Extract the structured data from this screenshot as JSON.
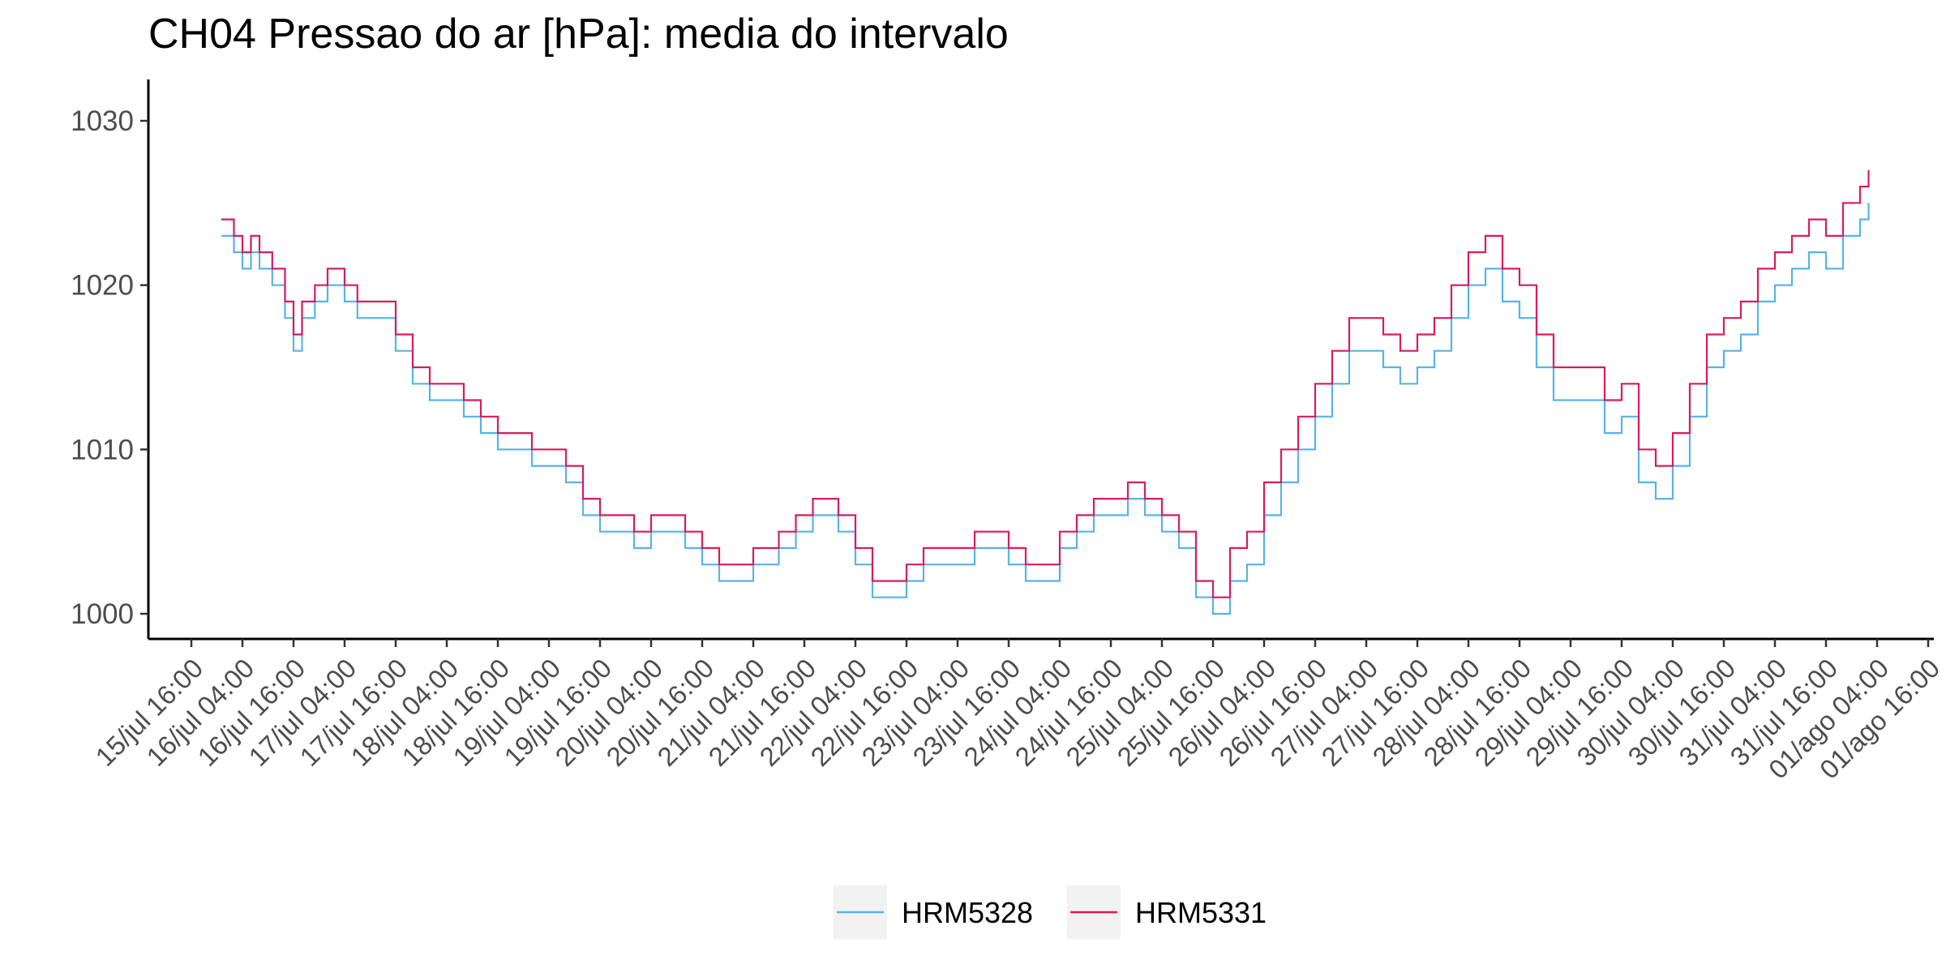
{
  "chart_data": {
    "type": "line",
    "title": "CH04 Pressao do ar [hPa]: media do intervalo",
    "xlabel": "",
    "ylabel": "",
    "x_unit": "datetime",
    "xlim": [
      "2023-07-15T16:00",
      "2023-08-01T16:00"
    ],
    "ylim": [
      998.5,
      1032.5
    ],
    "y_ticks": [
      1000,
      1010,
      1020,
      1030
    ],
    "y_tick_labels": [
      "1000",
      "1010",
      "1020",
      "1030"
    ],
    "x_ticks": [
      "2023-07-15T16:00",
      "2023-07-16T04:00",
      "2023-07-16T16:00",
      "2023-07-17T04:00",
      "2023-07-17T16:00",
      "2023-07-18T04:00",
      "2023-07-18T16:00",
      "2023-07-19T04:00",
      "2023-07-19T16:00",
      "2023-07-20T04:00",
      "2023-07-20T16:00",
      "2023-07-21T04:00",
      "2023-07-21T16:00",
      "2023-07-22T04:00",
      "2023-07-22T16:00",
      "2023-07-23T04:00",
      "2023-07-23T16:00",
      "2023-07-24T04:00",
      "2023-07-24T16:00",
      "2023-07-25T04:00",
      "2023-07-25T16:00",
      "2023-07-26T04:00",
      "2023-07-26T16:00",
      "2023-07-27T04:00",
      "2023-07-27T16:00",
      "2023-07-28T04:00",
      "2023-07-28T16:00",
      "2023-07-29T04:00",
      "2023-07-29T16:00",
      "2023-07-30T04:00",
      "2023-07-30T16:00",
      "2023-07-31T04:00",
      "2023-07-31T16:00",
      "2023-08-01T04:00",
      "2023-08-01T16:00"
    ],
    "x_tick_labels": [
      "15/jul 16:00",
      "16/jul 04:00",
      "16/jul 16:00",
      "17/jul 04:00",
      "17/jul 16:00",
      "18/jul 04:00",
      "18/jul 16:00",
      "19/jul 04:00",
      "19/jul 16:00",
      "20/jul 04:00",
      "20/jul 16:00",
      "21/jul 04:00",
      "21/jul 16:00",
      "22/jul 04:00",
      "22/jul 16:00",
      "23/jul 04:00",
      "23/jul 16:00",
      "24/jul 04:00",
      "24/jul 16:00",
      "25/jul 04:00",
      "25/jul 16:00",
      "26/jul 04:00",
      "26/jul 16:00",
      "27/jul 04:00",
      "27/jul 16:00",
      "28/jul 04:00",
      "28/jul 16:00",
      "29/jul 04:00",
      "29/jul 16:00",
      "30/jul 04:00",
      "30/jul 16:00",
      "31/jul 04:00",
      "31/jul 16:00",
      "01/ago 04:00",
      "01/ago 16:00"
    ],
    "grid": false,
    "legend_position": "bottom",
    "step": true,
    "series": [
      {
        "name": "HRM5328",
        "color": "#56B4E9",
        "x": [
          "2023-07-15T23:00",
          "2023-07-16T02:00",
          "2023-07-16T04:00",
          "2023-07-16T06:00",
          "2023-07-16T08:00",
          "2023-07-16T11:00",
          "2023-07-16T14:00",
          "2023-07-16T16:00",
          "2023-07-16T18:00",
          "2023-07-16T21:00",
          "2023-07-17T00:00",
          "2023-07-17T04:00",
          "2023-07-17T07:00",
          "2023-07-17T10:00",
          "2023-07-17T14:00",
          "2023-07-17T16:00",
          "2023-07-17T20:00",
          "2023-07-18T00:00",
          "2023-07-18T04:00",
          "2023-07-18T08:00",
          "2023-07-18T12:00",
          "2023-07-18T16:00",
          "2023-07-19T00:00",
          "2023-07-19T08:00",
          "2023-07-19T12:00",
          "2023-07-19T16:00",
          "2023-07-19T20:00",
          "2023-07-20T00:00",
          "2023-07-20T04:00",
          "2023-07-20T08:00",
          "2023-07-20T12:00",
          "2023-07-20T16:00",
          "2023-07-20T20:00",
          "2023-07-21T00:00",
          "2023-07-21T04:00",
          "2023-07-21T10:00",
          "2023-07-21T14:00",
          "2023-07-21T18:00",
          "2023-07-22T00:00",
          "2023-07-22T04:00",
          "2023-07-22T08:00",
          "2023-07-22T12:00",
          "2023-07-22T16:00",
          "2023-07-22T20:00",
          "2023-07-23T04:00",
          "2023-07-23T08:00",
          "2023-07-23T12:00",
          "2023-07-23T16:00",
          "2023-07-23T20:00",
          "2023-07-24T00:00",
          "2023-07-24T04:00",
          "2023-07-24T08:00",
          "2023-07-24T12:00",
          "2023-07-24T16:00",
          "2023-07-24T20:00",
          "2023-07-25T00:00",
          "2023-07-25T04:00",
          "2023-07-25T08:00",
          "2023-07-25T12:00",
          "2023-07-25T16:00",
          "2023-07-25T20:00",
          "2023-07-26T00:00",
          "2023-07-26T04:00",
          "2023-07-26T08:00",
          "2023-07-26T12:00",
          "2023-07-26T16:00",
          "2023-07-26T20:00",
          "2023-07-27T00:00",
          "2023-07-27T04:00",
          "2023-07-27T08:00",
          "2023-07-27T12:00",
          "2023-07-27T16:00",
          "2023-07-27T20:00",
          "2023-07-28T00:00",
          "2023-07-28T04:00",
          "2023-07-28T08:00",
          "2023-07-28T12:00",
          "2023-07-28T16:00",
          "2023-07-28T20:00",
          "2023-07-29T00:00",
          "2023-07-29T04:00",
          "2023-07-29T08:00",
          "2023-07-29T12:00",
          "2023-07-29T16:00",
          "2023-07-29T20:00",
          "2023-07-30T00:00",
          "2023-07-30T04:00",
          "2023-07-30T08:00",
          "2023-07-30T12:00",
          "2023-07-30T16:00",
          "2023-07-30T20:00",
          "2023-07-31T00:00",
          "2023-07-31T04:00",
          "2023-07-31T08:00",
          "2023-07-31T12:00",
          "2023-07-31T16:00",
          "2023-07-31T20:00",
          "2023-08-01T00:00",
          "2023-08-01T02:00"
        ],
        "values": [
          1023,
          1022,
          1021,
          1022,
          1021,
          1020,
          1018,
          1016,
          1018,
          1019,
          1020,
          1019,
          1018,
          1018,
          1018,
          1016,
          1014,
          1013,
          1013,
          1012,
          1011,
          1010,
          1009,
          1008,
          1006,
          1005,
          1005,
          1004,
          1005,
          1005,
          1004,
          1003,
          1002,
          1002,
          1003,
          1004,
          1005,
          1006,
          1005,
          1003,
          1001,
          1001,
          1002,
          1003,
          1003,
          1004,
          1004,
          1003,
          1002,
          1002,
          1004,
          1005,
          1006,
          1006,
          1007,
          1006,
          1005,
          1004,
          1001,
          1000,
          1002,
          1003,
          1006,
          1008,
          1010,
          1012,
          1014,
          1016,
          1016,
          1015,
          1014,
          1015,
          1016,
          1018,
          1020,
          1021,
          1019,
          1018,
          1015,
          1013,
          1013,
          1013,
          1011,
          1012,
          1008,
          1007,
          1009,
          1012,
          1015,
          1016,
          1017,
          1019,
          1020,
          1021,
          1022,
          1021,
          1023,
          1024,
          1025
        ],
        "ignore_x_is_label_series": true
      }
    ]
  },
  "legend": {
    "items": [
      {
        "label": "HRM5328",
        "color": "#56B4E9"
      },
      {
        "label": "HRM5331",
        "color": "#D81B60"
      }
    ]
  }
}
